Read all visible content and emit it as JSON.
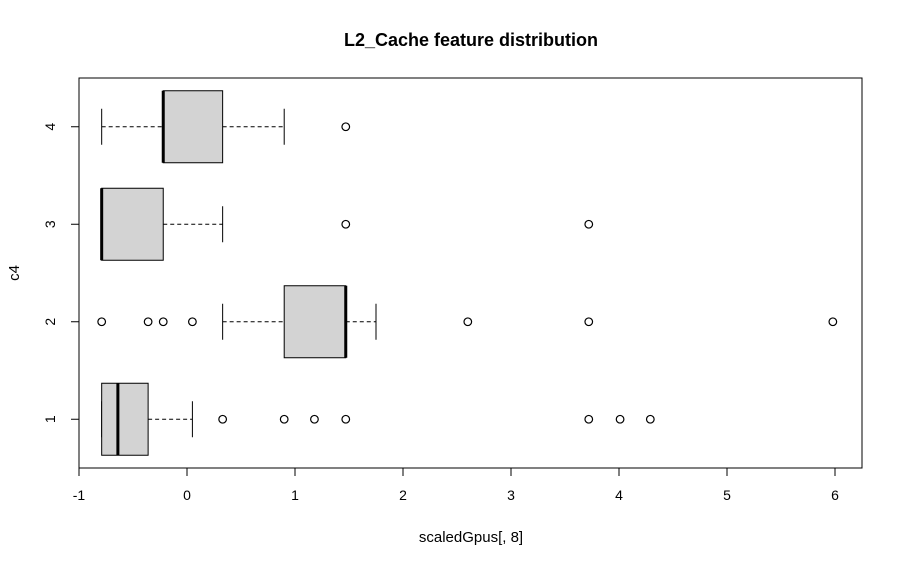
{
  "chart_data": {
    "type": "boxplot",
    "orientation": "horizontal",
    "title": "L2_Cache feature distribution",
    "xlabel": "scaledGpus[, 8]",
    "ylabel": "c4",
    "xlim": [
      -1.0,
      6.25
    ],
    "ylim": [
      0.5,
      4.5
    ],
    "x_ticks": [
      -1,
      0,
      1,
      2,
      3,
      4,
      5,
      6
    ],
    "categories": [
      "1",
      "2",
      "3",
      "4"
    ],
    "boxes": [
      {
        "category": "1",
        "whisker_low": -0.79,
        "q1": -0.79,
        "median": -0.64,
        "q3": -0.36,
        "whisker_high": 0.05,
        "outliers": [
          0.33,
          0.9,
          1.18,
          1.47,
          3.72,
          4.01,
          4.29
        ]
      },
      {
        "category": "2",
        "whisker_low": 0.33,
        "q1": 0.9,
        "median": 1.47,
        "q3": 1.47,
        "whisker_high": 1.75,
        "outliers": [
          -0.79,
          -0.36,
          -0.22,
          0.05,
          2.6,
          3.72,
          5.98
        ]
      },
      {
        "category": "3",
        "whisker_low": -0.79,
        "q1": -0.79,
        "median": -0.79,
        "q3": -0.22,
        "whisker_high": 0.33,
        "outliers": [
          1.47,
          3.72
        ]
      },
      {
        "category": "4",
        "whisker_low": -0.79,
        "q1": -0.22,
        "median": -0.22,
        "q3": 0.33,
        "whisker_high": 0.9,
        "outliers": [
          1.47
        ]
      }
    ],
    "box_fill": "#d3d3d3",
    "grid": false,
    "legend": "none"
  }
}
